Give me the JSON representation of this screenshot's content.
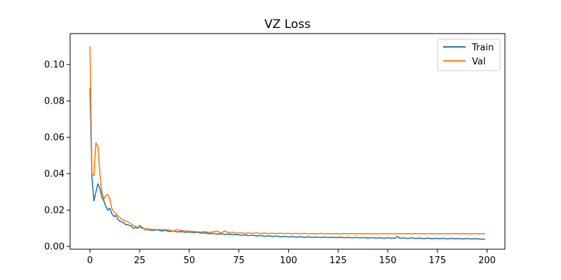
{
  "chart_data": {
    "type": "line",
    "title": "VZ Loss",
    "xlabel": "",
    "ylabel": "",
    "xlim": [
      -10,
      209
    ],
    "ylim": [
      -0.0015,
      0.117
    ],
    "xticks": [
      0,
      25,
      50,
      75,
      100,
      125,
      150,
      175,
      200
    ],
    "yticks": [
      0.0,
      0.02,
      0.04,
      0.06,
      0.08,
      0.1
    ],
    "ytick_labels": [
      "0.00",
      "0.02",
      "0.04",
      "0.06",
      "0.08",
      "0.10"
    ],
    "grid": false,
    "legend_position": "top-right",
    "series": [
      {
        "name": "Train",
        "color": "#1f77b4",
        "points": [
          [
            0,
            0.087
          ],
          [
            1,
            0.038
          ],
          [
            2,
            0.025
          ],
          [
            3,
            0.03
          ],
          [
            4,
            0.0345
          ],
          [
            5,
            0.032
          ],
          [
            6,
            0.027
          ],
          [
            7,
            0.025
          ],
          [
            8,
            0.022
          ],
          [
            9,
            0.02
          ],
          [
            10,
            0.021
          ],
          [
            11,
            0.018
          ],
          [
            12,
            0.0165
          ],
          [
            13,
            0.017
          ],
          [
            14,
            0.015
          ],
          [
            15,
            0.014
          ],
          [
            16,
            0.0135
          ],
          [
            17,
            0.013
          ],
          [
            18,
            0.012
          ],
          [
            19,
            0.012
          ],
          [
            20,
            0.0115
          ],
          [
            21,
            0.011
          ],
          [
            22,
            0.01
          ],
          [
            23,
            0.0105
          ],
          [
            24,
            0.01
          ],
          [
            25,
            0.0115
          ],
          [
            26,
            0.0105
          ],
          [
            27,
            0.01
          ],
          [
            28,
            0.009
          ],
          [
            29,
            0.0095
          ],
          [
            30,
            0.009
          ],
          [
            32,
            0.0088
          ],
          [
            34,
            0.0092
          ],
          [
            36,
            0.0085
          ],
          [
            38,
            0.0088
          ],
          [
            40,
            0.0082
          ],
          [
            42,
            0.0085
          ],
          [
            44,
            0.008
          ],
          [
            46,
            0.0082
          ],
          [
            48,
            0.0078
          ],
          [
            50,
            0.008
          ],
          [
            52,
            0.0076
          ],
          [
            54,
            0.0078
          ],
          [
            56,
            0.0073
          ],
          [
            58,
            0.0075
          ],
          [
            60,
            0.007
          ],
          [
            62,
            0.0072
          ],
          [
            64,
            0.0068
          ],
          [
            66,
            0.007
          ],
          [
            68,
            0.0066
          ],
          [
            70,
            0.0068
          ],
          [
            72,
            0.0064
          ],
          [
            74,
            0.0066
          ],
          [
            76,
            0.0062
          ],
          [
            78,
            0.0064
          ],
          [
            80,
            0.006
          ],
          [
            82,
            0.0062
          ],
          [
            84,
            0.0058
          ],
          [
            86,
            0.006
          ],
          [
            88,
            0.0056
          ],
          [
            90,
            0.0058
          ],
          [
            92,
            0.0055
          ],
          [
            94,
            0.0057
          ],
          [
            96,
            0.0053
          ],
          [
            98,
            0.0056
          ],
          [
            100,
            0.0052
          ],
          [
            102,
            0.0055
          ],
          [
            104,
            0.0051
          ],
          [
            106,
            0.0054
          ],
          [
            108,
            0.005
          ],
          [
            110,
            0.0053
          ],
          [
            112,
            0.005
          ],
          [
            114,
            0.0052
          ],
          [
            116,
            0.0049
          ],
          [
            118,
            0.0052
          ],
          [
            120,
            0.0049
          ],
          [
            122,
            0.0051
          ],
          [
            124,
            0.0048
          ],
          [
            126,
            0.0051
          ],
          [
            128,
            0.0048
          ],
          [
            130,
            0.005
          ],
          [
            132,
            0.0047
          ],
          [
            134,
            0.005
          ],
          [
            136,
            0.0047
          ],
          [
            138,
            0.0049
          ],
          [
            140,
            0.0046
          ],
          [
            142,
            0.0049
          ],
          [
            144,
            0.0046
          ],
          [
            146,
            0.0048
          ],
          [
            148,
            0.0045
          ],
          [
            150,
            0.0048
          ],
          [
            152,
            0.0045
          ],
          [
            154,
            0.0047
          ],
          [
            155,
            0.0055
          ],
          [
            156,
            0.0045
          ],
          [
            158,
            0.0047
          ],
          [
            160,
            0.0044
          ],
          [
            162,
            0.0047
          ],
          [
            164,
            0.0044
          ],
          [
            166,
            0.0046
          ],
          [
            168,
            0.0043
          ],
          [
            170,
            0.0046
          ],
          [
            172,
            0.0043
          ],
          [
            174,
            0.0045
          ],
          [
            176,
            0.0043
          ],
          [
            178,
            0.0045
          ],
          [
            180,
            0.0042
          ],
          [
            182,
            0.0045
          ],
          [
            184,
            0.0042
          ],
          [
            186,
            0.0044
          ],
          [
            188,
            0.0041
          ],
          [
            190,
            0.0044
          ],
          [
            192,
            0.0041
          ],
          [
            194,
            0.0043
          ],
          [
            196,
            0.0041
          ],
          [
            198,
            0.004
          ],
          [
            199,
            0.0039
          ]
        ]
      },
      {
        "name": "Val",
        "color": "#ff7f0e",
        "points": [
          [
            0,
            0.11
          ],
          [
            1,
            0.04
          ],
          [
            2,
            0.039
          ],
          [
            3,
            0.057
          ],
          [
            4,
            0.055
          ],
          [
            5,
            0.04
          ],
          [
            6,
            0.03
          ],
          [
            7,
            0.026
          ],
          [
            8,
            0.028
          ],
          [
            9,
            0.0285
          ],
          [
            10,
            0.026
          ],
          [
            11,
            0.021
          ],
          [
            12,
            0.019
          ],
          [
            13,
            0.018
          ],
          [
            14,
            0.017
          ],
          [
            15,
            0.016
          ],
          [
            16,
            0.015
          ],
          [
            17,
            0.0145
          ],
          [
            18,
            0.014
          ],
          [
            19,
            0.0135
          ],
          [
            20,
            0.013
          ],
          [
            21,
            0.012
          ],
          [
            22,
            0.0115
          ],
          [
            23,
            0.011
          ],
          [
            24,
            0.0105
          ],
          [
            25,
            0.0105
          ],
          [
            26,
            0.01
          ],
          [
            27,
            0.0098
          ],
          [
            28,
            0.0095
          ],
          [
            29,
            0.0098
          ],
          [
            30,
            0.0095
          ],
          [
            32,
            0.0093
          ],
          [
            34,
            0.0094
          ],
          [
            36,
            0.0092
          ],
          [
            38,
            0.0093
          ],
          [
            40,
            0.009
          ],
          [
            42,
            0.0085
          ],
          [
            44,
            0.0093
          ],
          [
            46,
            0.0088
          ],
          [
            48,
            0.0086
          ],
          [
            50,
            0.0084
          ],
          [
            52,
            0.0083
          ],
          [
            54,
            0.0081
          ],
          [
            56,
            0.0079
          ],
          [
            58,
            0.0082
          ],
          [
            60,
            0.0077
          ],
          [
            62,
            0.008
          ],
          [
            64,
            0.0085
          ],
          [
            66,
            0.0074
          ],
          [
            68,
            0.0085
          ],
          [
            70,
            0.0074
          ],
          [
            72,
            0.0078
          ],
          [
            74,
            0.0073
          ],
          [
            76,
            0.0076
          ],
          [
            78,
            0.0072
          ],
          [
            80,
            0.0075
          ],
          [
            82,
            0.0072
          ],
          [
            84,
            0.0075
          ],
          [
            86,
            0.0071
          ],
          [
            88,
            0.0074
          ],
          [
            90,
            0.0071
          ],
          [
            92,
            0.0073
          ],
          [
            94,
            0.0071
          ],
          [
            96,
            0.0073
          ],
          [
            98,
            0.0071
          ],
          [
            100,
            0.0072
          ],
          [
            102,
            0.007
          ],
          [
            104,
            0.0072
          ],
          [
            106,
            0.007
          ],
          [
            108,
            0.0072
          ],
          [
            110,
            0.007
          ],
          [
            112,
            0.0071
          ],
          [
            114,
            0.007
          ],
          [
            116,
            0.0072
          ],
          [
            118,
            0.007
          ],
          [
            120,
            0.0071
          ],
          [
            122,
            0.007
          ],
          [
            124,
            0.0071
          ],
          [
            126,
            0.007
          ],
          [
            128,
            0.0071
          ],
          [
            130,
            0.007
          ],
          [
            132,
            0.0071
          ],
          [
            134,
            0.007
          ],
          [
            136,
            0.0071
          ],
          [
            138,
            0.007
          ],
          [
            140,
            0.0071
          ],
          [
            142,
            0.007
          ],
          [
            144,
            0.0071
          ],
          [
            146,
            0.007
          ],
          [
            148,
            0.0071
          ],
          [
            150,
            0.007
          ],
          [
            152,
            0.0071
          ],
          [
            154,
            0.007
          ],
          [
            156,
            0.0071
          ],
          [
            158,
            0.007
          ],
          [
            160,
            0.0071
          ],
          [
            162,
            0.007
          ],
          [
            164,
            0.0071
          ],
          [
            166,
            0.007
          ],
          [
            168,
            0.0071
          ],
          [
            170,
            0.007
          ],
          [
            172,
            0.0071
          ],
          [
            174,
            0.007
          ],
          [
            176,
            0.0071
          ],
          [
            178,
            0.007
          ],
          [
            180,
            0.0071
          ],
          [
            182,
            0.007
          ],
          [
            184,
            0.0071
          ],
          [
            186,
            0.007
          ],
          [
            188,
            0.0071
          ],
          [
            190,
            0.007
          ],
          [
            192,
            0.0071
          ],
          [
            194,
            0.007
          ],
          [
            196,
            0.007
          ],
          [
            198,
            0.007
          ],
          [
            199,
            0.0071
          ]
        ]
      }
    ]
  }
}
